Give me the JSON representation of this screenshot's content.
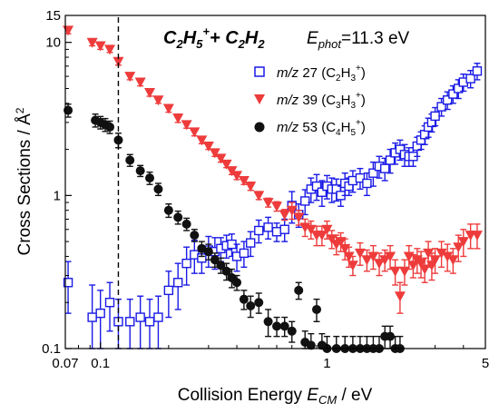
{
  "chart_data": {
    "type": "scatter",
    "title": "",
    "xlabel": "Collision Energy E_CM / eV",
    "ylabel": "Cross Sections / Å²",
    "x_scale": "log",
    "y_scale": "log",
    "xlim": [
      0.07,
      5
    ],
    "ylim": [
      0.1,
      15
    ],
    "x_ticks": [
      0.07,
      0.1,
      1,
      5
    ],
    "y_ticks": [
      0.1,
      1,
      10,
      15
    ],
    "x_tick_labels": [
      "0.07",
      "0.1",
      "1",
      "5"
    ],
    "y_tick_labels": [
      "0.1",
      "1",
      "10",
      "15"
    ],
    "annotation_text": {
      "reaction": {
        "a": "C",
        "b": "2",
        "c": "H",
        "d": "5",
        "e": "+",
        "f": "+ C",
        "g": "2",
        "h": "H",
        "i": "2"
      },
      "ephot": {
        "e": "E",
        "sub": "phot",
        "val": "=11.3 eV"
      }
    },
    "vertical_line_x": 0.12,
    "grid": false,
    "legend_position": "top-right",
    "colors": {
      "m27": "#1a1ae6",
      "m39": "#ee3b3b",
      "m53": "#111111"
    },
    "legend": [
      {
        "mz": "m/z",
        "mass": "27",
        "formula": {
          "p": "(C",
          "s1": "2",
          "m": "H",
          "s2": "3",
          "sup": "+",
          "q": ")"
        }
      },
      {
        "mz": "m/z",
        "mass": "39",
        "formula": {
          "p": "(C",
          "s1": "3",
          "m": "H",
          "s2": "3",
          "sup": "+",
          "q": ")"
        }
      },
      {
        "mz": "m/z",
        "mass": "53",
        "formula": {
          "p": "(C",
          "s1": "4",
          "m": "H",
          "s2": "5",
          "sup": "+",
          "q": ")"
        }
      }
    ],
    "series": [
      {
        "name": "m/z 27 (C2H3+)",
        "marker": "open-square",
        "x": [
          0.072,
          0.092,
          0.1,
          0.11,
          0.12,
          0.135,
          0.15,
          0.165,
          0.18,
          0.2,
          0.22,
          0.24,
          0.26,
          0.28,
          0.3,
          0.32,
          0.34,
          0.36,
          0.38,
          0.4,
          0.43,
          0.46,
          0.5,
          0.55,
          0.6,
          0.65,
          0.7,
          0.75,
          0.8,
          0.85,
          0.9,
          0.95,
          1.0,
          1.05,
          1.1,
          1.15,
          1.2,
          1.25,
          1.3,
          1.4,
          1.5,
          1.6,
          1.7,
          1.8,
          1.9,
          2.0,
          2.1,
          2.2,
          2.3,
          2.4,
          2.5,
          2.6,
          2.7,
          2.8,
          2.9,
          3.0,
          3.2,
          3.4,
          3.6,
          3.8,
          4.0,
          4.3,
          4.6
        ],
        "y": [
          0.27,
          0.16,
          0.17,
          0.2,
          0.15,
          0.15,
          0.16,
          0.15,
          0.16,
          0.24,
          0.27,
          0.36,
          0.41,
          0.39,
          0.44,
          0.43,
          0.45,
          0.47,
          0.48,
          0.4,
          0.42,
          0.49,
          0.59,
          0.62,
          0.58,
          0.6,
          0.86,
          0.75,
          0.92,
          1.1,
          1.15,
          1.05,
          1.15,
          1.1,
          1.1,
          1.0,
          1.2,
          1.15,
          1.25,
          1.3,
          1.2,
          1.4,
          1.55,
          1.5,
          1.7,
          1.9,
          2.0,
          1.85,
          1.8,
          1.8,
          2.1,
          2.3,
          2.5,
          2.8,
          3.0,
          3.3,
          3.8,
          4.2,
          4.6,
          5.0,
          5.5,
          5.8,
          6.5
        ],
        "err": [
          0.1,
          0.1,
          0.07,
          0.07,
          0.06,
          0.06,
          0.06,
          0.06,
          0.06,
          0.08,
          0.09,
          0.1,
          0.1,
          0.08,
          0.1,
          0.1,
          0.08,
          0.08,
          0.08,
          0.08,
          0.08,
          0.09,
          0.1,
          0.1,
          0.08,
          0.1,
          0.2,
          0.13,
          0.17,
          0.2,
          0.22,
          0.2,
          0.2,
          0.2,
          0.18,
          0.15,
          0.2,
          0.15,
          0.2,
          0.2,
          0.2,
          0.25,
          0.25,
          0.25,
          0.3,
          0.3,
          0.3,
          0.3,
          0.25,
          0.25,
          0.3,
          0.3,
          0.35,
          0.4,
          0.4,
          0.45,
          0.5,
          0.55,
          0.6,
          0.7,
          0.7,
          0.75,
          0.8
        ]
      },
      {
        "name": "m/z 39 (C3H3+)",
        "marker": "filled-triangle-down",
        "x": [
          0.072,
          0.092,
          0.1,
          0.11,
          0.12,
          0.135,
          0.15,
          0.165,
          0.18,
          0.2,
          0.22,
          0.24,
          0.26,
          0.28,
          0.3,
          0.32,
          0.34,
          0.36,
          0.38,
          0.4,
          0.43,
          0.46,
          0.5,
          0.55,
          0.6,
          0.65,
          0.7,
          0.75,
          0.8,
          0.85,
          0.9,
          0.95,
          1.0,
          1.05,
          1.1,
          1.15,
          1.2,
          1.25,
          1.3,
          1.4,
          1.5,
          1.6,
          1.7,
          1.8,
          1.9,
          2.0,
          2.1,
          2.2,
          2.3,
          2.4,
          2.5,
          2.6,
          2.7,
          2.8,
          2.9,
          3.0,
          3.2,
          3.4,
          3.6,
          3.8,
          4.0,
          4.3,
          4.6
        ],
        "y": [
          12.0,
          10.0,
          9.5,
          9.0,
          7.5,
          6.0,
          5.5,
          4.7,
          4.2,
          3.7,
          3.2,
          2.9,
          2.6,
          2.3,
          2.1,
          1.9,
          1.75,
          1.6,
          1.45,
          1.35,
          1.25,
          1.15,
          1.0,
          0.9,
          0.85,
          0.75,
          0.8,
          0.72,
          0.62,
          0.6,
          0.55,
          0.55,
          0.6,
          0.52,
          0.48,
          0.5,
          0.45,
          0.4,
          0.35,
          0.42,
          0.38,
          0.4,
          0.36,
          0.38,
          0.4,
          0.32,
          0.22,
          0.32,
          0.4,
          0.35,
          0.38,
          0.36,
          0.33,
          0.42,
          0.35,
          0.38,
          0.42,
          0.4,
          0.38,
          0.46,
          0.5,
          0.55,
          0.55
        ],
        "err": [
          0.6,
          0.5,
          0.5,
          0.4,
          0.4,
          0.3,
          0.3,
          0.25,
          0.2,
          0.2,
          0.2,
          0.15,
          0.15,
          0.12,
          0.1,
          0.1,
          0.1,
          0.08,
          0.08,
          0.08,
          0.07,
          0.07,
          0.06,
          0.06,
          0.06,
          0.06,
          0.1,
          0.08,
          0.08,
          0.08,
          0.08,
          0.08,
          0.08,
          0.07,
          0.07,
          0.07,
          0.07,
          0.06,
          0.05,
          0.07,
          0.06,
          0.07,
          0.06,
          0.06,
          0.07,
          0.06,
          0.05,
          0.06,
          0.07,
          0.06,
          0.07,
          0.07,
          0.06,
          0.08,
          0.07,
          0.07,
          0.08,
          0.08,
          0.07,
          0.09,
          0.1,
          0.1,
          0.1
        ]
      },
      {
        "name": "m/z 53 (C4H5+)",
        "marker": "filled-circle",
        "x": [
          0.072,
          0.095,
          0.1,
          0.105,
          0.11,
          0.12,
          0.135,
          0.15,
          0.165,
          0.18,
          0.2,
          0.22,
          0.24,
          0.26,
          0.28,
          0.3,
          0.32,
          0.34,
          0.36,
          0.38,
          0.4,
          0.43,
          0.46,
          0.5,
          0.55,
          0.6,
          0.65,
          0.7,
          0.75,
          0.8,
          0.85,
          0.9,
          0.95,
          1.0,
          1.1,
          1.2,
          1.3,
          1.4,
          1.5,
          1.6,
          1.7,
          1.8,
          1.9,
          2.0,
          2.1
        ],
        "y": [
          3.6,
          3.1,
          3.0,
          2.9,
          2.8,
          2.3,
          1.7,
          1.45,
          1.3,
          1.1,
          0.8,
          0.72,
          0.65,
          0.55,
          0.45,
          0.43,
          0.38,
          0.35,
          0.32,
          0.29,
          0.27,
          0.21,
          0.19,
          0.2,
          0.15,
          0.14,
          0.14,
          0.13,
          0.24,
          0.11,
          0.105,
          0.18,
          0.105,
          0.1,
          0.1,
          0.1,
          0.1,
          0.1,
          0.1,
          0.1,
          0.1,
          0.12,
          0.12,
          0.1,
          0.1
        ],
        "err": [
          0.35,
          0.3,
          0.28,
          0.28,
          0.26,
          0.25,
          0.15,
          0.12,
          0.12,
          0.1,
          0.08,
          0.07,
          0.06,
          0.05,
          0.05,
          0.05,
          0.04,
          0.04,
          0.04,
          0.04,
          0.03,
          0.03,
          0.03,
          0.03,
          0.03,
          0.02,
          0.02,
          0.02,
          0.03,
          0.02,
          0.02,
          0.03,
          0.02,
          0.02,
          0.02,
          0.02,
          0.02,
          0.02,
          0.02,
          0.02,
          0.02,
          0.02,
          0.02,
          0.02,
          0.02
        ]
      }
    ]
  }
}
